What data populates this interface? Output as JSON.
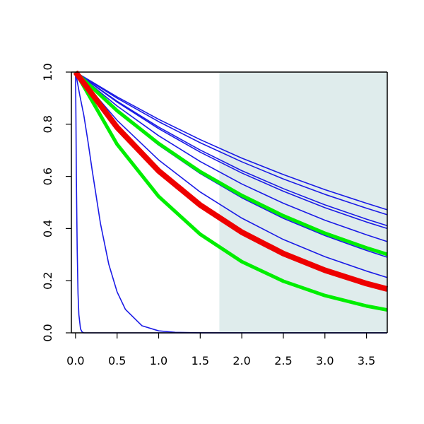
{
  "chart_data": {
    "type": "line",
    "title": "",
    "xlabel": "",
    "ylabel": "",
    "xlim": [
      -0.05,
      3.75
    ],
    "ylim": [
      0.0,
      1.0
    ],
    "grid": false,
    "x_ticks": [
      "0.0",
      "0.5",
      "1.0",
      "1.5",
      "2.0",
      "2.5",
      "3.0",
      "3.5"
    ],
    "y_ticks": [
      "0.0",
      "0.2",
      "0.4",
      "0.6",
      "0.8",
      "1.0"
    ],
    "shaded_region": {
      "x_from": 1.73,
      "x_to": 3.75,
      "color": "#dfecec"
    },
    "colors": {
      "blue": "#1a1ae6",
      "green": "#00ee00",
      "red": "#ee0000",
      "axis": "#000000"
    },
    "series": [
      {
        "color": "blue",
        "width": 1.6,
        "x": [
          0,
          0.5,
          1.0,
          1.5,
          2.0,
          2.5,
          3.0,
          3.5,
          3.75
        ],
        "y": [
          1.0,
          0.905,
          0.819,
          0.741,
          0.67,
          0.607,
          0.549,
          0.497,
          0.472
        ]
      },
      {
        "color": "blue",
        "width": 1.6,
        "x": [
          0,
          0.5,
          1.0,
          1.5,
          2.0,
          2.5,
          3.0,
          3.5,
          3.75
        ],
        "y": [
          1.0,
          0.9,
          0.81,
          0.729,
          0.656,
          0.59,
          0.531,
          0.478,
          0.453
        ]
      },
      {
        "color": "blue",
        "width": 1.6,
        "x": [
          0,
          0.5,
          1.0,
          1.5,
          2.0,
          2.5,
          3.0,
          3.5,
          3.75
        ],
        "y": [
          1.0,
          0.888,
          0.789,
          0.701,
          0.622,
          0.553,
          0.491,
          0.436,
          0.411
        ]
      },
      {
        "color": "blue",
        "width": 1.6,
        "x": [
          0,
          0.5,
          1.0,
          1.5,
          2.0,
          2.5,
          3.0,
          3.5,
          3.75
        ],
        "y": [
          1.0,
          0.885,
          0.783,
          0.693,
          0.613,
          0.543,
          0.48,
          0.425,
          0.4
        ]
      },
      {
        "color": "blue",
        "width": 1.6,
        "x": [
          0,
          0.5,
          1.0,
          1.5,
          2.0,
          2.5,
          3.0,
          3.5,
          3.75
        ],
        "y": [
          1.0,
          0.87,
          0.756,
          0.657,
          0.571,
          0.497,
          0.432,
          0.376,
          0.35
        ]
      },
      {
        "color": "blue",
        "width": 1.6,
        "x": [
          0,
          0.5,
          1.0,
          1.5,
          2.0,
          2.5,
          3.0,
          3.5,
          3.75
        ],
        "y": [
          1.0,
          0.848,
          0.72,
          0.611,
          0.518,
          0.439,
          0.373,
          0.316,
          0.29
        ]
      },
      {
        "color": "blue",
        "width": 1.6,
        "x": [
          0,
          0.5,
          1.0,
          1.5,
          2.0,
          2.5,
          3.0,
          3.5,
          3.75
        ],
        "y": [
          1.0,
          0.815,
          0.663,
          0.54,
          0.44,
          0.358,
          0.292,
          0.237,
          0.212
        ]
      },
      {
        "color": "blue",
        "width": 1.6,
        "x": [
          0,
          0.5,
          1.0,
          1.5,
          2.0,
          2.5,
          3.0,
          3.5,
          3.75
        ],
        "y": [
          1.0,
          0.785,
          0.616,
          0.484,
          0.38,
          0.298,
          0.234,
          0.184,
          0.162
        ]
      },
      {
        "color": "blue",
        "width": 1.6,
        "x": [
          0,
          0.05,
          0.1,
          0.15,
          0.2,
          0.3,
          0.4,
          0.5,
          0.6,
          0.8,
          1.0,
          1.2,
          1.5,
          2.0,
          3.0,
          3.75
        ],
        "y": [
          1.0,
          0.913,
          0.834,
          0.733,
          0.624,
          0.419,
          0.263,
          0.157,
          0.09,
          0.027,
          0.0076,
          0.002,
          0.0003,
          0.0,
          0.0,
          0.0
        ]
      },
      {
        "color": "blue",
        "width": 1.6,
        "x": [
          0,
          0.005,
          0.01,
          0.02,
          0.03,
          0.04,
          0.06,
          0.08,
          0.1,
          0.15,
          3.75
        ],
        "y": [
          1.0,
          0.82,
          0.6,
          0.32,
          0.15,
          0.07,
          0.015,
          0.003,
          0.0,
          0.0,
          0.0
        ]
      },
      {
        "color": "green",
        "width": 5,
        "x": [
          0,
          0.5,
          1.0,
          1.5,
          2.0,
          2.5,
          3.0,
          3.5,
          3.75
        ],
        "y": [
          1.0,
          0.852,
          0.726,
          0.618,
          0.527,
          0.449,
          0.382,
          0.326,
          0.301
        ]
      },
      {
        "color": "green",
        "width": 5,
        "x": [
          0,
          0.5,
          1.0,
          1.5,
          2.0,
          2.5,
          3.0,
          3.5,
          3.75
        ],
        "y": [
          1.0,
          0.723,
          0.523,
          0.378,
          0.273,
          0.198,
          0.143,
          0.103,
          0.088
        ]
      },
      {
        "color": "red",
        "width": 8,
        "x": [
          0,
          0.5,
          1.0,
          1.5,
          2.0,
          2.5,
          3.0,
          3.5,
          3.75
        ],
        "y": [
          1.0,
          0.788,
          0.621,
          0.49,
          0.386,
          0.304,
          0.24,
          0.189,
          0.168
        ]
      }
    ]
  }
}
